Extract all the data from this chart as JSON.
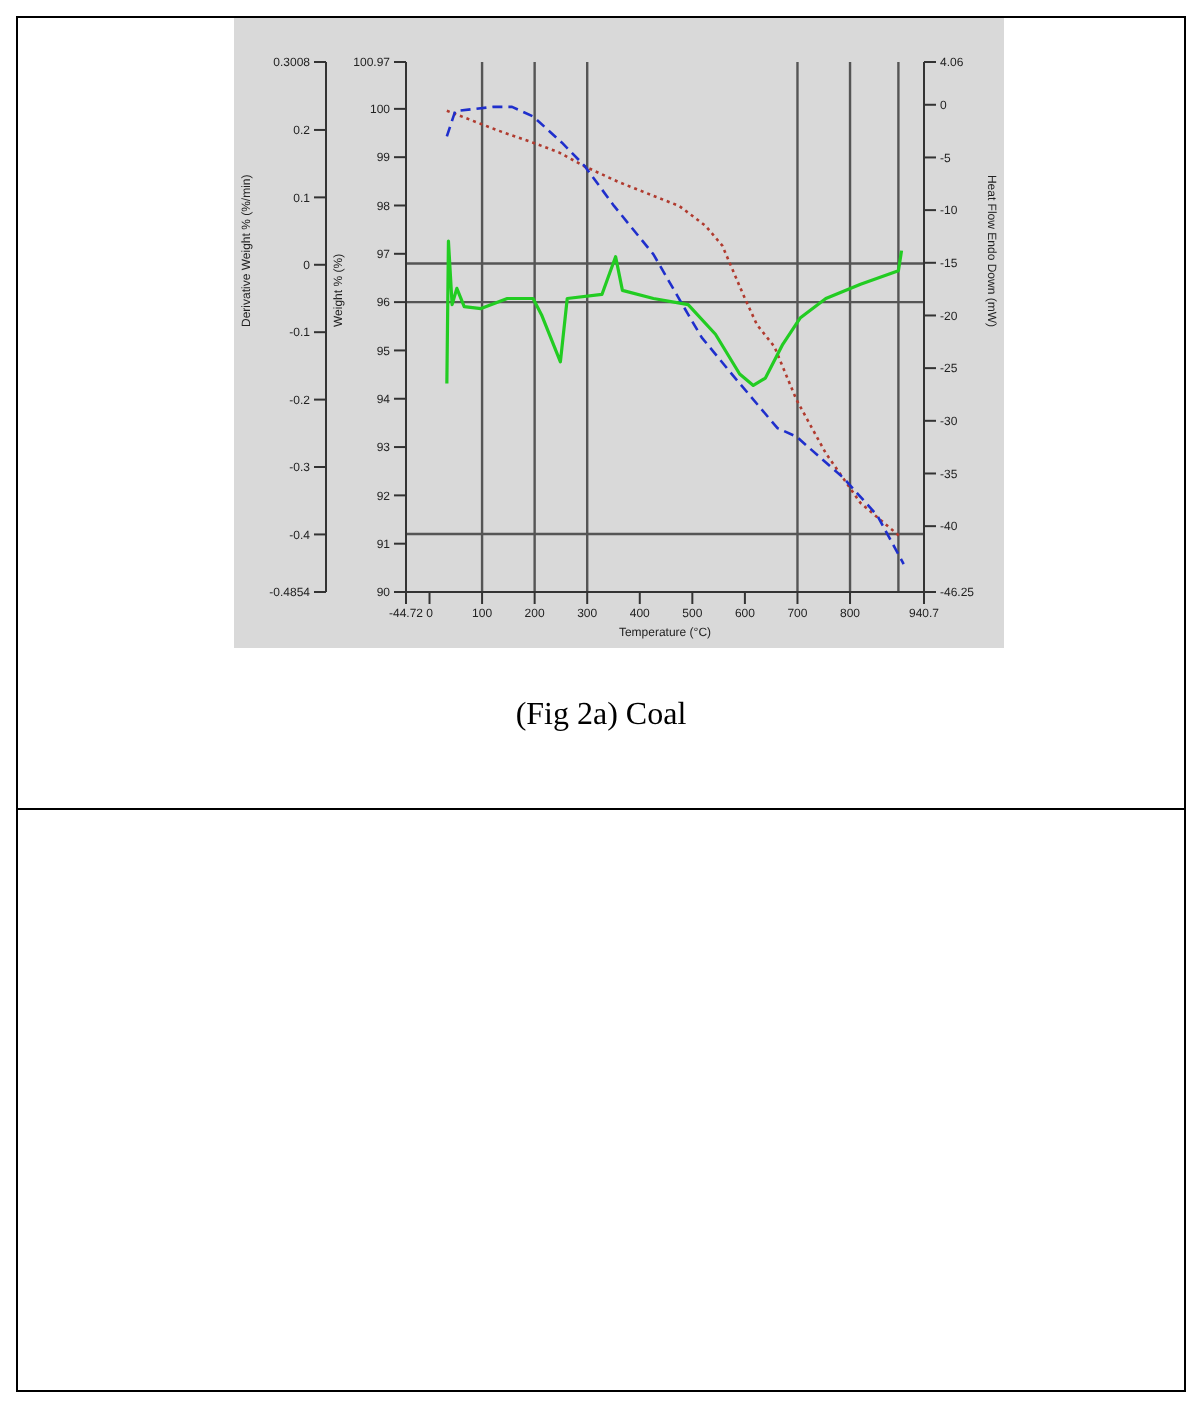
{
  "chart_data": {
    "type": "line",
    "xlabel": "Temperature (°C)",
    "ylabel": "Weight % (%)",
    "y2label": "Heat Flow Endo Down (mW)",
    "y3label": "Derivative Weight % (%/min)",
    "annotations": [
      "(Fig 2a) Coal"
    ],
    "xlim": [
      -44.72,
      940.7
    ],
    "xticks": [
      -44.72,
      0,
      100,
      200,
      300,
      400,
      500,
      600,
      700,
      800,
      940.7
    ],
    "ylim": [
      90,
      100.97
    ],
    "yticks": [
      90,
      91,
      92,
      93,
      94,
      95,
      96,
      97,
      98,
      99,
      100,
      100.97
    ],
    "y2lim": [
      -46.25,
      4.06
    ],
    "y2ticks": [
      -46.25,
      -40,
      -35,
      -30,
      -25,
      -20,
      -15,
      -10,
      -5,
      0,
      4.06
    ],
    "y3lim": [
      -0.4854,
      0.3008
    ],
    "y3ticks": [
      -0.4854,
      -0.4,
      -0.3,
      -0.2,
      -0.1,
      0.0,
      0.1,
      0.2,
      0.3008
    ],
    "ref_lines": [
      {
        "axis": "x",
        "value": 100,
        "color": "#555555"
      },
      {
        "axis": "x",
        "value": 200,
        "color": "#555555"
      },
      {
        "axis": "x",
        "value": 300,
        "color": "#555555"
      },
      {
        "axis": "x",
        "value": 700,
        "color": "#555555"
      },
      {
        "axis": "x",
        "value": 800,
        "color": "#555555"
      },
      {
        "axis": "x",
        "value": 892,
        "color": "#555555"
      },
      {
        "axis": "y",
        "value": 96.8,
        "color": "#555555"
      },
      {
        "axis": "y",
        "value": 96.0,
        "color": "#555555"
      },
      {
        "axis": "y",
        "value": 91.2,
        "color": "#555555"
      }
    ],
    "series": [
      {
        "color": "#b03a2e",
        "line_style": "dotted",
        "x": [
          33,
          131,
          197,
          246,
          295,
          361,
          426,
          475,
          525,
          557,
          597,
          623,
          656,
          698,
          754,
          820,
          895
        ],
        "values": [
          99.96,
          99.55,
          99.3,
          99.1,
          98.81,
          98.48,
          98.2,
          97.99,
          97.58,
          97.17,
          96.15,
          95.53,
          95.08,
          93.98,
          92.87,
          91.84,
          91.15
        ]
      },
      {
        "color": "#1f2fcc",
        "line_style": "dashed",
        "axis": "y2",
        "x": [
          33,
          49,
          121,
          157,
          197,
          252,
          295,
          351,
          426,
          492,
          518,
          574,
          662,
          698,
          787,
          852,
          902
        ],
        "values": [
          -3.0,
          -0.6,
          -0.2,
          -0.2,
          -1.1,
          -3.6,
          -5.8,
          -9.6,
          -14.2,
          -19.9,
          -22.1,
          -25.5,
          -30.7,
          -31.5,
          -35.4,
          -39.0,
          -43.6
        ]
      },
      {
        "color": "#22cc22",
        "line_style": "solid",
        "axis": "y3",
        "x": [
          33,
          36,
          43,
          52,
          66,
          98,
          148,
          197,
          213,
          249,
          262,
          328,
          354,
          367,
          426,
          492,
          544,
          590,
          616,
          639,
          672,
          705,
          754,
          820,
          892,
          898
        ],
        "values": [
          -0.176,
          0.035,
          -0.059,
          -0.035,
          -0.062,
          -0.065,
          -0.05,
          -0.05,
          -0.074,
          -0.144,
          -0.05,
          -0.044,
          0.012,
          -0.038,
          -0.05,
          -0.059,
          -0.103,
          -0.162,
          -0.179,
          -0.168,
          -0.118,
          -0.079,
          -0.05,
          -0.029,
          -0.009,
          0.021
        ]
      }
    ]
  }
}
